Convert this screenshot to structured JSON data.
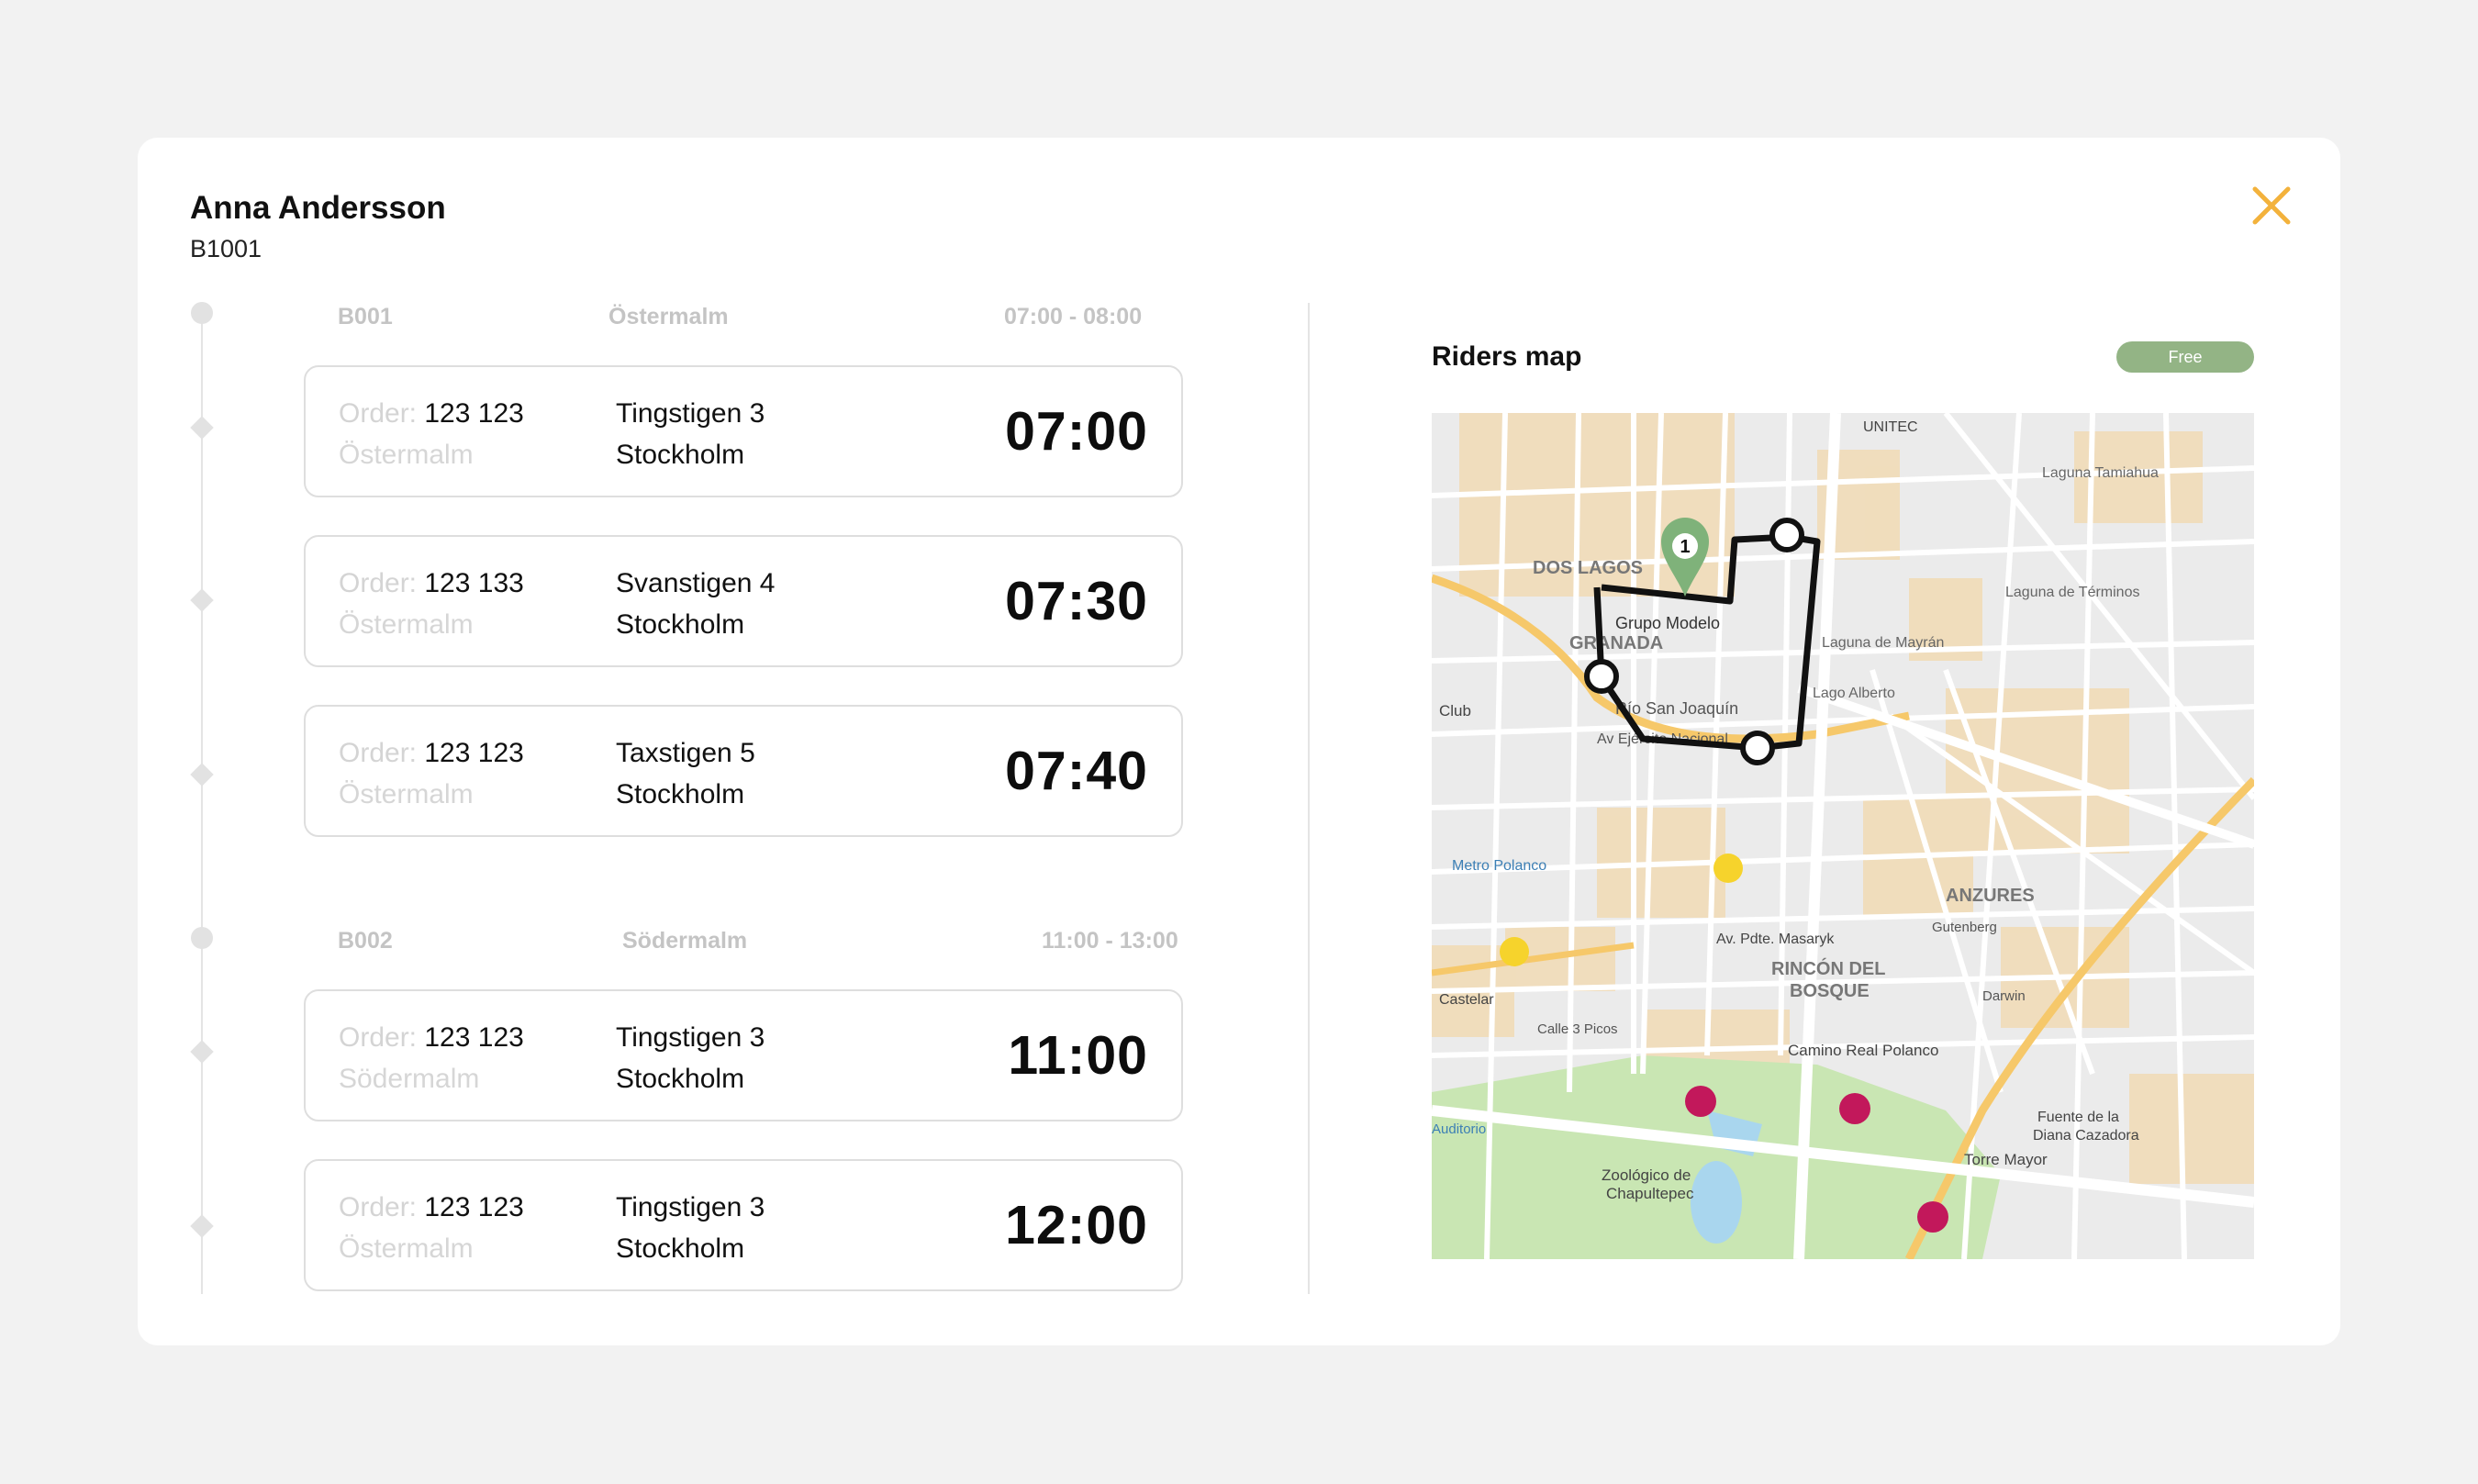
{
  "rider": {
    "name": "Anna Andersson",
    "id": "B1001"
  },
  "groups": [
    {
      "code": "B001",
      "area": "Östermalm",
      "window": "07:00 - 08:00",
      "orders": [
        {
          "order_label": "Order:",
          "order_no": "123 123",
          "area": "Östermalm",
          "street": "Tingstigen 3",
          "city": "Stockholm",
          "time": "07:00"
        },
        {
          "order_label": "Order:",
          "order_no": "123 133",
          "area": "Östermalm",
          "street": "Svanstigen 4",
          "city": "Stockholm",
          "time": "07:30"
        },
        {
          "order_label": "Order:",
          "order_no": "123 123",
          "area": "Östermalm",
          "street": "Taxstigen 5",
          "city": "Stockholm",
          "time": "07:40"
        }
      ]
    },
    {
      "code": "B002",
      "area": "Södermalm",
      "window": "11:00 - 13:00",
      "orders": [
        {
          "order_label": "Order:",
          "order_no": "123 123",
          "area": "Södermalm",
          "street": "Tingstigen 3",
          "city": "Stockholm",
          "time": "11:00"
        },
        {
          "order_label": "Order:",
          "order_no": "123 123",
          "area": "Östermalm",
          "street": "Tingstigen 3",
          "city": "Stockholm",
          "time": "12:00"
        }
      ]
    }
  ],
  "map_panel": {
    "title": "Riders map",
    "status": "Free",
    "pin_number": "1",
    "labels": {
      "dos_lagos": "DOS LAGOS",
      "granada": "GRANADA",
      "grupo_modelo": "Grupo Modelo",
      "anzures": "ANZURES",
      "rincon1": "RINCÓN DEL",
      "rincon2": "BOSQUE",
      "rio_san_joaquin": "Río San Joaquín",
      "av_ejercito": "Av Ejército Nacional",
      "metro_polanco": "Metro Polanco",
      "camino_real": "Camino Real Polanco",
      "zoologico1": "Zoológico de",
      "zoologico2": "Chapultepec",
      "torre_mayor": "Torre Mayor",
      "laguna_tamiahua": "Laguna Tamiahua",
      "laguna_terminos": "Laguna de Términos",
      "laguna_mayran": "Laguna de Mayrán",
      "lago_alberto": "Lago Alberto",
      "unitec": "UNITEC",
      "av_masaryk": "Av. Pdte. Masaryk",
      "fuente1": "Fuente de la",
      "fuente2": "Diana Cazadora",
      "club": "Club",
      "castelar": "Castelar",
      "auditorio": "Auditorio",
      "gutenberg": "Gutenberg",
      "darwin": "Darwin",
      "calle3picos": "Calle 3 Picos"
    }
  },
  "colors": {
    "accent": "#f3b23c",
    "badge": "#93b485",
    "route": "#111111",
    "pin": "#7fb27a"
  }
}
